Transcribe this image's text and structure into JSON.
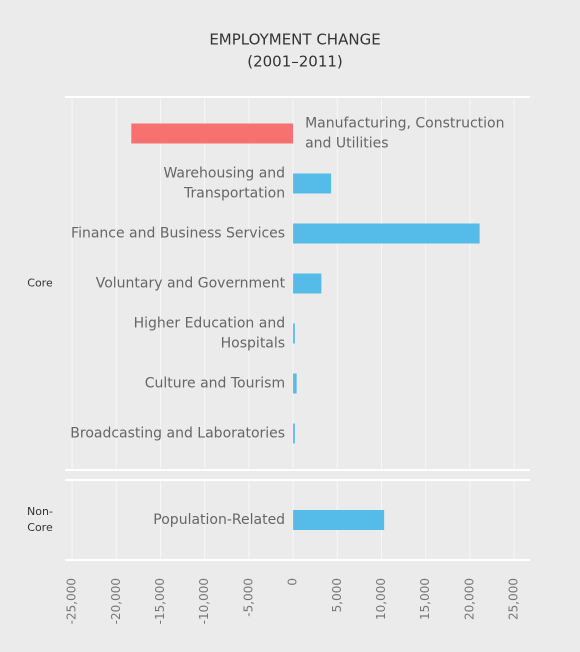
{
  "chart_data": {
    "type": "bar",
    "orientation": "horizontal",
    "title": "EMPLOYMENT CHANGE",
    "subtitle": "(2001–2011)",
    "panels": [
      {
        "name": "Core",
        "categories": [
          "Manufacturing, Construction and Utilities",
          "Warehousing and Transportation",
          "Finance and Business Services",
          "Voluntary and Government",
          "Higher Education and Hospitals",
          "Culture and Tourism",
          "Broadcasting and Laboratories"
        ],
        "values": [
          -18300,
          4300,
          21100,
          3200,
          200,
          400,
          200
        ]
      },
      {
        "name": "Non-Core",
        "categories": [
          "Population-Related"
        ],
        "values": [
          10300
        ]
      }
    ],
    "negative_color": "#f87171",
    "positive_color": "#55bbe9",
    "xlim": [
      -25800,
      26800
    ],
    "xticks": [
      {
        "value": -25000,
        "label": "-25,000"
      },
      {
        "value": -20000,
        "label": "-20,000"
      },
      {
        "value": -15000,
        "label": "-15,000"
      },
      {
        "value": -10000,
        "label": "-10,000"
      },
      {
        "value": -5000,
        "label": "-5,000"
      },
      0,
      {
        "value": 5000,
        "label": "5,000"
      },
      {
        "value": 10000,
        "label": "10,000"
      },
      {
        "value": 15000,
        "label": "15,000"
      },
      {
        "value": 20000,
        "label": "20,000"
      },
      {
        "value": 25000,
        "label": "25,000"
      }
    ],
    "grid": true
  }
}
